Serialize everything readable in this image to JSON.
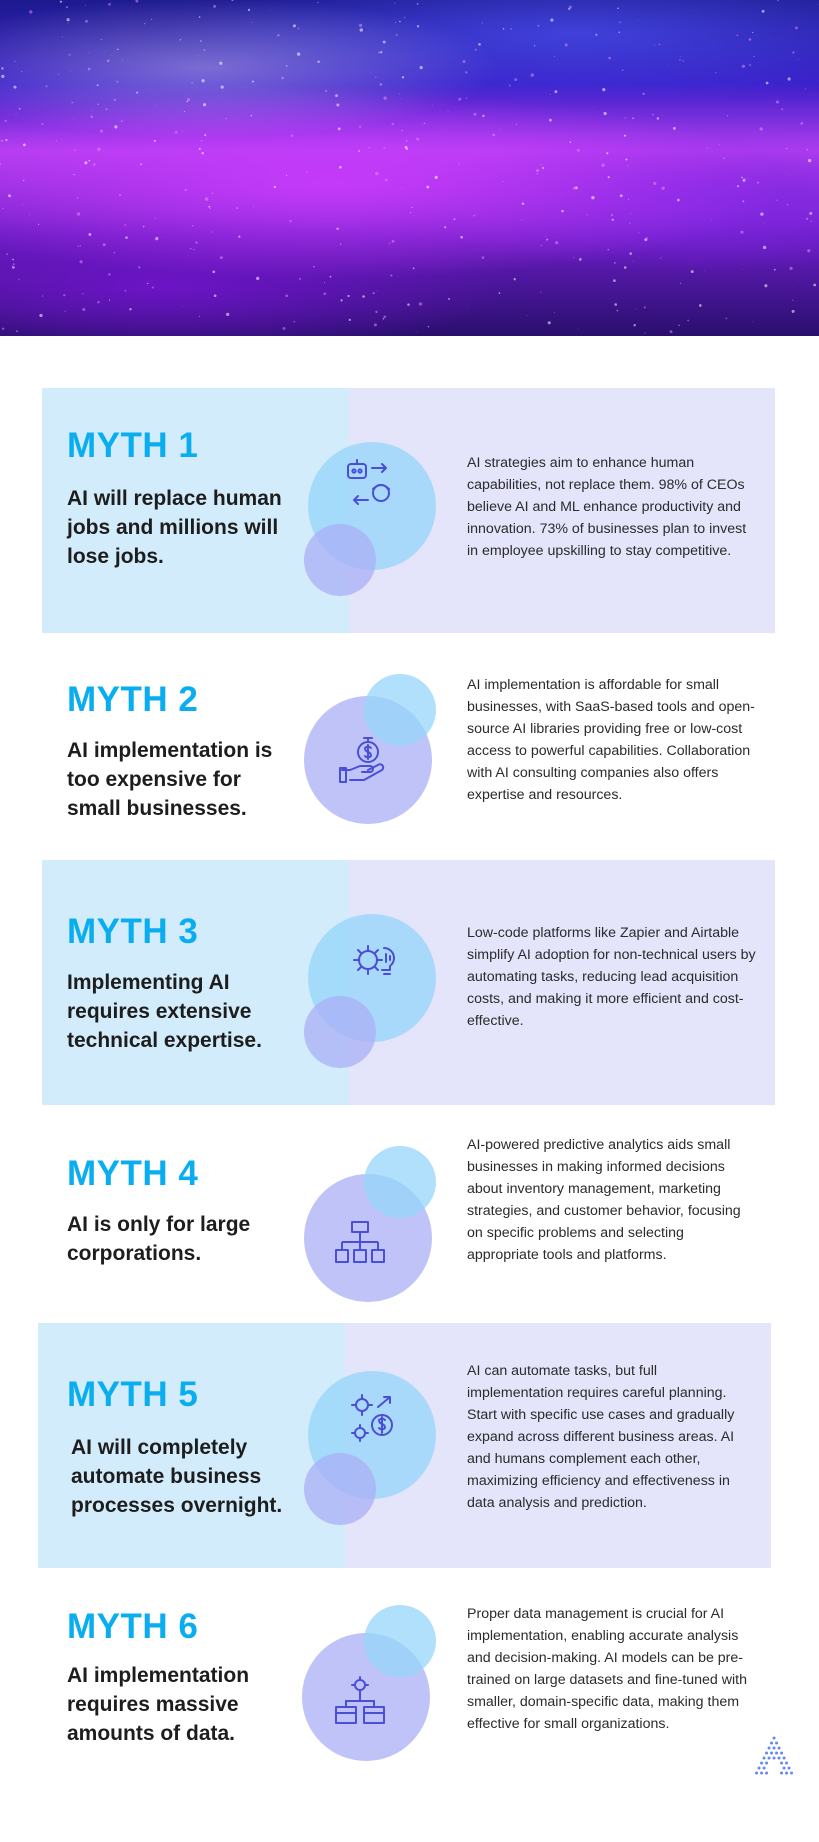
{
  "colors": {
    "accent": "#0aaef0",
    "panel_left": "#d3ecfb",
    "panel_right": "#e4e4fa",
    "icon_stroke": "#4a4fd6"
  },
  "hero": {
    "icon": "purple-particle-landscape-image"
  },
  "myths": [
    {
      "number": "MYTH 1",
      "title": "AI will replace human jobs and millions will lose jobs.",
      "description": "AI strategies aim to enhance human capabilities, not replace them. 98% of CEOs believe AI and ML enhance productivity and innovation. 73% of businesses plan to invest in employee upskilling to stay competitive.",
      "icon": "robot-human-exchange-icon"
    },
    {
      "number": "MYTH 2",
      "title": "AI implementation is too expensive for small businesses.",
      "description": "AI implementation is affordable for small businesses, with SaaS-based tools and open-source AI libraries providing free or low-cost access to powerful capabilities. Collaboration with AI consulting companies also offers expertise and resources.",
      "icon": "hand-money-clock-icon"
    },
    {
      "number": "MYTH 3",
      "title": "Implementing AI requires extensive technical expertise.",
      "description": "Low-code platforms like Zapier and Airtable simplify AI adoption for non-technical users by automating tasks, reducing lead acquisition costs, and making it more efficient and cost-effective.",
      "icon": "gear-brain-bulb-icon"
    },
    {
      "number": "MYTH 4",
      "title": "AI is only for large corporations.",
      "description": "AI-powered predictive analytics aids small businesses in making informed decisions about inventory management, marketing strategies, and customer behavior, focusing on specific problems and selecting appropriate tools and platforms.",
      "icon": "org-chart-icon"
    },
    {
      "number": "MYTH 5",
      "title": "AI will completely automate business processes overnight.",
      "description": "AI can automate tasks, but full implementation requires careful planning. Start with specific use cases and gradually expand across different business areas. AI and humans complement each other, maximizing efficiency and effectiveness in data analysis and prediction.",
      "icon": "gears-dollar-arrow-icon"
    },
    {
      "number": "MYTH 6",
      "title": "AI implementation requires massive amounts of data.",
      "description": "Proper data management is crucial for AI implementation, enabling accurate analysis and decision-making. AI models can be pre-trained on large datasets and fine-tuned with smaller, domain-specific data, making them effective for small organizations.",
      "icon": "gear-data-boxes-icon"
    }
  ],
  "logo": {
    "icon": "brand-logo-icon"
  }
}
